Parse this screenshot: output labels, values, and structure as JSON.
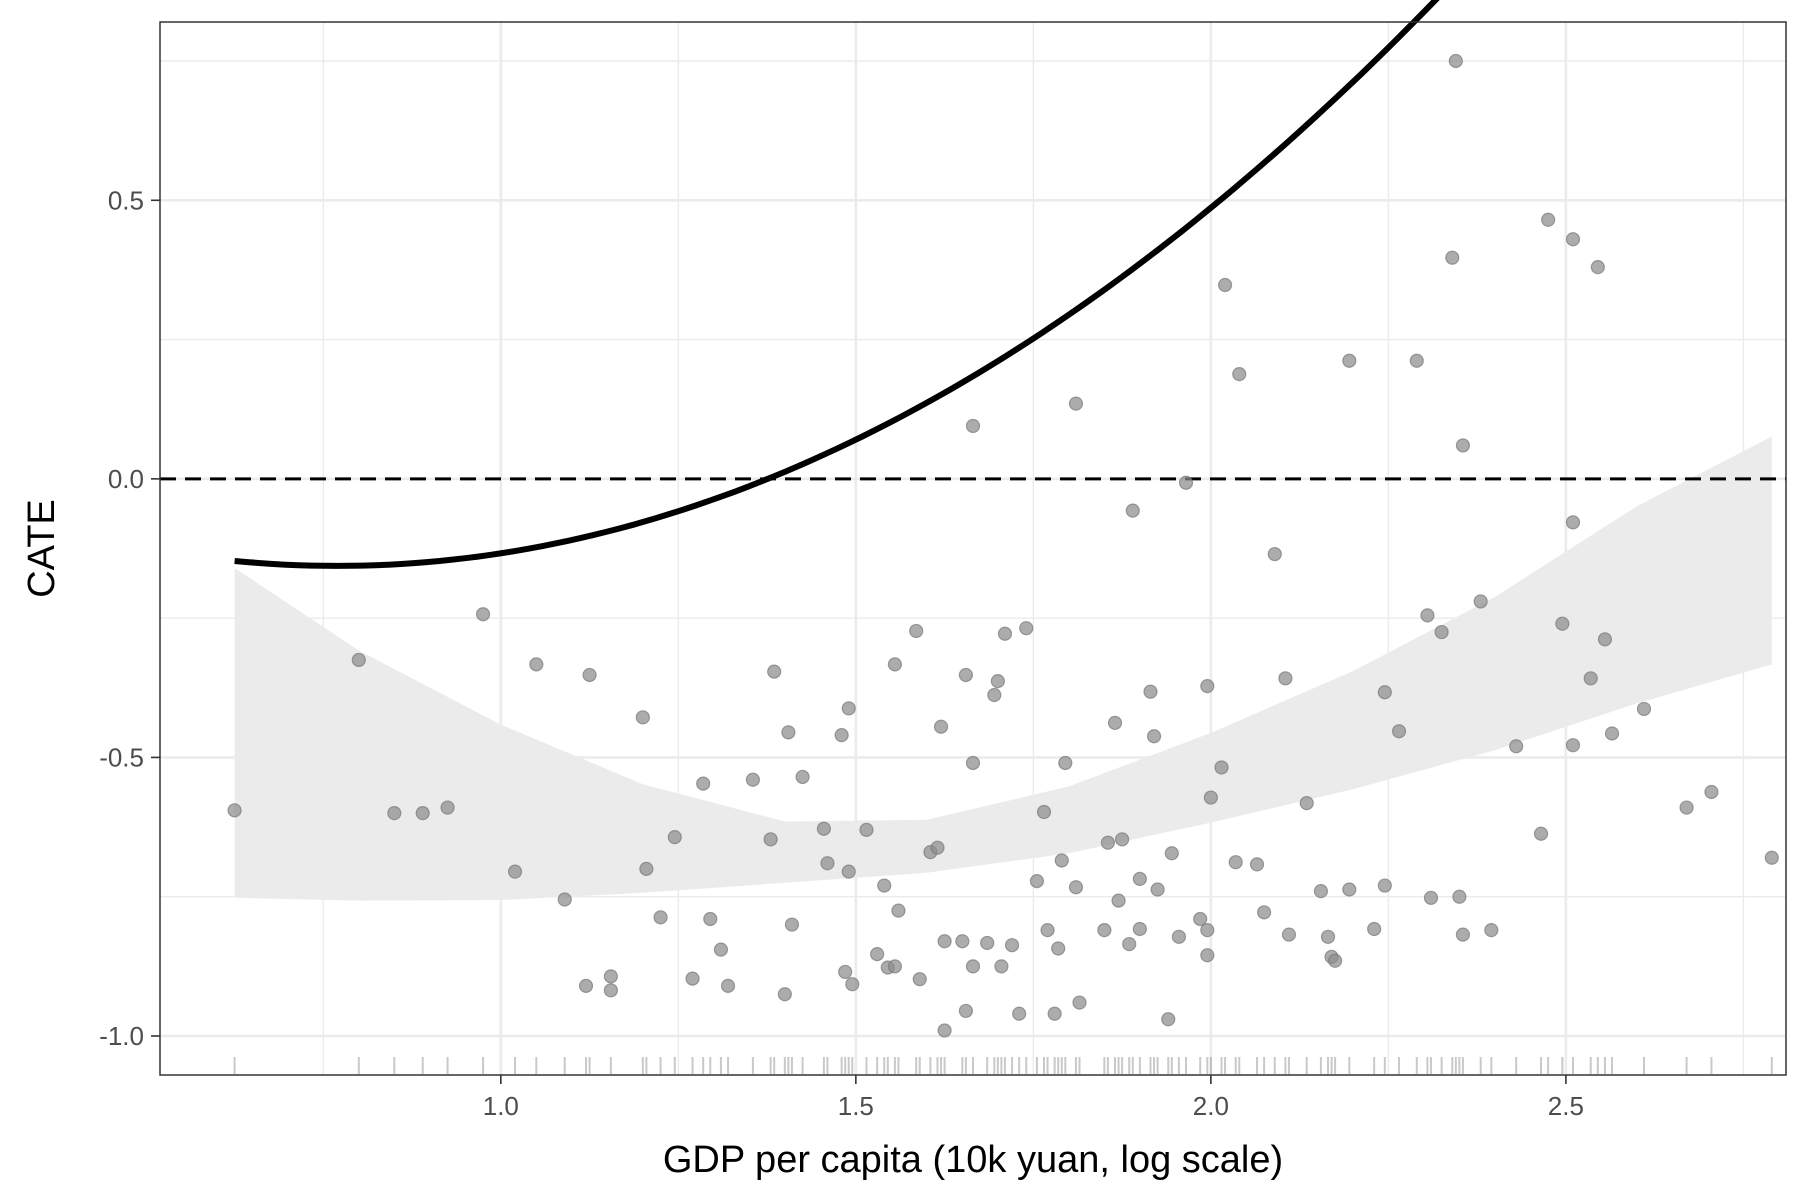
{
  "chart_data": {
    "type": "scatter",
    "xlabel": "GDP per capita (10k yuan, log scale)",
    "ylabel": "CATE",
    "xlim": [
      0.52,
      2.81
    ],
    "ylim": [
      -1.07,
      0.82
    ],
    "x_ticks": [
      1.0,
      1.5,
      2.0,
      2.5
    ],
    "x_tick_labels": [
      "1.0",
      "1.5",
      "2.0",
      "2.5"
    ],
    "y_ticks": [
      -1.0,
      -0.5,
      0.0,
      0.5
    ],
    "y_tick_labels": [
      "-1.0",
      "-0.5",
      "0.0",
      "0.5"
    ],
    "grid": true,
    "reference_line": {
      "y": 0.0,
      "style": "dashed"
    },
    "points": [
      [
        0.625,
        -0.595
      ],
      [
        0.8,
        -0.325
      ],
      [
        0.85,
        -0.6
      ],
      [
        0.89,
        -0.6
      ],
      [
        0.925,
        -0.59
      ],
      [
        0.975,
        -0.243
      ],
      [
        1.02,
        -0.705
      ],
      [
        1.05,
        -0.333
      ],
      [
        1.09,
        -0.755
      ],
      [
        1.12,
        -0.91
      ],
      [
        1.125,
        -0.352
      ],
      [
        1.155,
        -0.918
      ],
      [
        1.155,
        -0.893
      ],
      [
        1.2,
        -0.428
      ],
      [
        1.205,
        -0.7
      ],
      [
        1.225,
        -0.787
      ],
      [
        1.245,
        -0.643
      ],
      [
        1.27,
        -0.897
      ],
      [
        1.285,
        -0.547
      ],
      [
        1.295,
        -0.79
      ],
      [
        1.31,
        -0.845
      ],
      [
        1.32,
        -0.91
      ],
      [
        1.355,
        -0.54
      ],
      [
        1.38,
        -0.647
      ],
      [
        1.385,
        -0.346
      ],
      [
        1.4,
        -0.925
      ],
      [
        1.405,
        -0.455
      ],
      [
        1.41,
        -0.8
      ],
      [
        1.425,
        -0.535
      ],
      [
        1.455,
        -0.628
      ],
      [
        1.46,
        -0.69
      ],
      [
        1.48,
        -0.46
      ],
      [
        1.485,
        -0.885
      ],
      [
        1.49,
        -0.705
      ],
      [
        1.49,
        -0.412
      ],
      [
        1.495,
        -0.907
      ],
      [
        1.515,
        -0.63
      ],
      [
        1.53,
        -0.853
      ],
      [
        1.54,
        -0.73
      ],
      [
        1.545,
        -0.877
      ],
      [
        1.555,
        -0.333
      ],
      [
        1.555,
        -0.875
      ],
      [
        1.56,
        -0.775
      ],
      [
        1.585,
        -0.273
      ],
      [
        1.59,
        -0.898
      ],
      [
        1.605,
        -0.67
      ],
      [
        1.615,
        -0.662
      ],
      [
        1.62,
        -0.445
      ],
      [
        1.625,
        -0.83
      ],
      [
        1.625,
        -0.99
      ],
      [
        1.65,
        -0.83
      ],
      [
        1.655,
        -0.955
      ],
      [
        1.655,
        -0.352
      ],
      [
        1.665,
        -0.51
      ],
      [
        1.665,
        0.095
      ],
      [
        1.665,
        -0.875
      ],
      [
        1.685,
        -0.833
      ],
      [
        1.695,
        -0.388
      ],
      [
        1.7,
        -0.363
      ],
      [
        1.705,
        -0.875
      ],
      [
        1.71,
        -0.278
      ],
      [
        1.72,
        -0.837
      ],
      [
        1.73,
        -0.96
      ],
      [
        1.74,
        -0.268
      ],
      [
        1.755,
        -0.722
      ],
      [
        1.765,
        -0.598
      ],
      [
        1.77,
        -0.81
      ],
      [
        1.78,
        -0.96
      ],
      [
        1.785,
        -0.843
      ],
      [
        1.79,
        -0.685
      ],
      [
        1.795,
        -0.51
      ],
      [
        1.81,
        -0.733
      ],
      [
        1.81,
        0.135
      ],
      [
        1.815,
        -0.94
      ],
      [
        1.85,
        -0.81
      ],
      [
        1.855,
        -0.653
      ],
      [
        1.865,
        -0.438
      ],
      [
        1.87,
        -0.757
      ],
      [
        1.875,
        -0.647
      ],
      [
        1.885,
        -0.835
      ],
      [
        1.89,
        -0.057
      ],
      [
        1.9,
        -0.718
      ],
      [
        1.9,
        -0.808
      ],
      [
        1.915,
        -0.382
      ],
      [
        1.92,
        -0.462
      ],
      [
        1.925,
        -0.737
      ],
      [
        1.94,
        -0.97
      ],
      [
        1.945,
        -0.672
      ],
      [
        1.955,
        -0.822
      ],
      [
        1.965,
        -0.007
      ],
      [
        1.985,
        -0.79
      ],
      [
        1.995,
        -0.81
      ],
      [
        1.995,
        -0.372
      ],
      [
        1.995,
        -0.855
      ],
      [
        2.0,
        -0.572
      ],
      [
        2.015,
        -0.518
      ],
      [
        2.02,
        0.348
      ],
      [
        2.035,
        -0.688
      ],
      [
        2.04,
        0.188
      ],
      [
        2.065,
        -0.692
      ],
      [
        2.075,
        -0.778
      ],
      [
        2.09,
        -0.135
      ],
      [
        2.105,
        -0.358
      ],
      [
        2.11,
        -0.818
      ],
      [
        2.135,
        -0.582
      ],
      [
        2.155,
        -0.74
      ],
      [
        2.165,
        -0.822
      ],
      [
        2.17,
        -0.858
      ],
      [
        2.175,
        -0.865
      ],
      [
        2.195,
        -0.737
      ],
      [
        2.195,
        0.212
      ],
      [
        2.23,
        -0.808
      ],
      [
        2.245,
        -0.73
      ],
      [
        2.245,
        -0.383
      ],
      [
        2.265,
        -0.453
      ],
      [
        2.29,
        0.212
      ],
      [
        2.305,
        -0.245
      ],
      [
        2.31,
        -0.752
      ],
      [
        2.325,
        -0.275
      ],
      [
        2.34,
        0.397
      ],
      [
        2.345,
        0.75
      ],
      [
        2.35,
        -0.75
      ],
      [
        2.355,
        -0.818
      ],
      [
        2.355,
        0.06
      ],
      [
        2.38,
        -0.22
      ],
      [
        2.395,
        -0.81
      ],
      [
        2.43,
        -0.48
      ],
      [
        2.465,
        -0.637
      ],
      [
        2.475,
        0.465
      ],
      [
        2.495,
        -0.26
      ],
      [
        2.51,
        -0.078
      ],
      [
        2.51,
        0.43
      ],
      [
        2.51,
        -0.478
      ],
      [
        2.535,
        -0.358
      ],
      [
        2.545,
        0.38
      ],
      [
        2.555,
        -0.288
      ],
      [
        2.565,
        -0.457
      ],
      [
        2.61,
        -0.413
      ],
      [
        2.67,
        -0.59
      ],
      [
        2.705,
        -0.562
      ],
      [
        2.79,
        -0.68
      ]
    ],
    "smooth": {
      "type": "quadratic fit with confidence band",
      "x_range": [
        0.625,
        2.79
      ],
      "coefficients": {
        "a": 0.0947,
        "b": -0.6525,
        "c": 0.4242
      },
      "band_lower": [
        [
          0.625,
          -0.752
        ],
        [
          0.8,
          -0.757
        ],
        [
          1.0,
          -0.756
        ],
        [
          1.2,
          -0.743
        ],
        [
          1.4,
          -0.725
        ],
        [
          1.6,
          -0.707
        ],
        [
          1.8,
          -0.672
        ],
        [
          2.0,
          -0.617
        ],
        [
          2.2,
          -0.557
        ],
        [
          2.4,
          -0.487
        ],
        [
          2.6,
          -0.403
        ],
        [
          2.79,
          -0.333
        ]
      ],
      "band_upper": [
        [
          0.625,
          -0.16
        ],
        [
          0.8,
          -0.308
        ],
        [
          1.0,
          -0.441
        ],
        [
          1.2,
          -0.548
        ],
        [
          1.4,
          -0.615
        ],
        [
          1.6,
          -0.612
        ],
        [
          1.8,
          -0.552
        ],
        [
          2.0,
          -0.456
        ],
        [
          2.2,
          -0.345
        ],
        [
          2.4,
          -0.212
        ],
        [
          2.6,
          -0.049
        ],
        [
          2.79,
          0.076
        ]
      ]
    },
    "rug": [
      0.625,
      0.8,
      0.85,
      0.89,
      0.925,
      0.975,
      1.02,
      1.05,
      1.09,
      1.12,
      1.125,
      1.155,
      1.2,
      1.205,
      1.225,
      1.245,
      1.27,
      1.285,
      1.295,
      1.31,
      1.32,
      1.355,
      1.38,
      1.385,
      1.4,
      1.405,
      1.41,
      1.425,
      1.455,
      1.46,
      1.48,
      1.485,
      1.49,
      1.495,
      1.515,
      1.53,
      1.54,
      1.545,
      1.555,
      1.56,
      1.585,
      1.59,
      1.605,
      1.615,
      1.62,
      1.625,
      1.65,
      1.655,
      1.665,
      1.685,
      1.695,
      1.7,
      1.705,
      1.71,
      1.72,
      1.73,
      1.74,
      1.755,
      1.765,
      1.77,
      1.78,
      1.785,
      1.79,
      1.795,
      1.81,
      1.815,
      1.85,
      1.855,
      1.865,
      1.87,
      1.875,
      1.885,
      1.89,
      1.9,
      1.915,
      1.92,
      1.925,
      1.94,
      1.945,
      1.955,
      1.965,
      1.985,
      1.995,
      2.0,
      2.015,
      2.02,
      2.035,
      2.04,
      2.065,
      2.075,
      2.09,
      2.105,
      2.11,
      2.135,
      2.155,
      2.165,
      2.17,
      2.175,
      2.195,
      2.23,
      2.245,
      2.265,
      2.29,
      2.305,
      2.31,
      2.325,
      2.34,
      2.345,
      2.35,
      2.355,
      2.38,
      2.395,
      2.43,
      2.465,
      2.475,
      2.495,
      2.51,
      2.535,
      2.545,
      2.555,
      2.565,
      2.61,
      2.67,
      2.705,
      2.79
    ],
    "colors": {
      "points": "#8c8c8c",
      "band": "#ebebeb",
      "line": "#000000",
      "grid": "#ebebeb",
      "panel_border": "#333333"
    }
  }
}
